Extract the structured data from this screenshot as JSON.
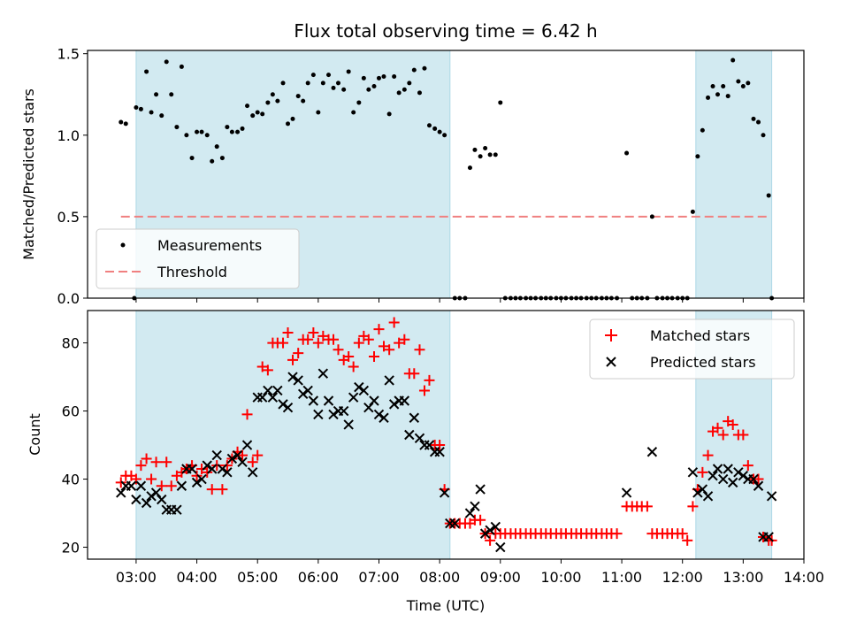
{
  "chart_data": [
    {
      "type": "scatter",
      "panel": "top",
      "title": "Flux total observing time = 6.42 h",
      "xlabel": "",
      "ylabel": "Matched/Predicted stars",
      "xlim": [
        2.2,
        14.0
      ],
      "ylim": [
        0.0,
        1.52
      ],
      "yticks": [
        0.0,
        0.5,
        1.0,
        1.5
      ],
      "ytick_labels": [
        "0.0",
        "0.5",
        "1.0",
        "1.5"
      ],
      "grid": false,
      "legend": {
        "placement": "lower-left",
        "entries": [
          "Measurements",
          "Threshold"
        ]
      },
      "shaded_ranges": [
        [
          3.0,
          8.17
        ],
        [
          12.22,
          13.47
        ]
      ],
      "threshold": {
        "name": "Threshold",
        "value": 0.5,
        "x_range": [
          2.75,
          13.45
        ],
        "color": "#f08080"
      },
      "series": [
        {
          "name": "Measurements",
          "color": "#000000",
          "x": [
            2.75,
            2.83,
            2.97,
            3.0,
            3.08,
            3.17,
            3.25,
            3.33,
            3.42,
            3.5,
            3.58,
            3.67,
            3.75,
            3.83,
            3.92,
            4.0,
            4.08,
            4.17,
            4.25,
            4.33,
            4.42,
            4.5,
            4.58,
            4.67,
            4.75,
            4.83,
            4.92,
            5.0,
            5.08,
            5.17,
            5.25,
            5.33,
            5.42,
            5.5,
            5.58,
            5.67,
            5.75,
            5.83,
            5.92,
            6.0,
            6.08,
            6.17,
            6.25,
            6.33,
            6.42,
            6.5,
            6.58,
            6.67,
            6.75,
            6.83,
            6.92,
            7.0,
            7.08,
            7.17,
            7.25,
            7.33,
            7.42,
            7.5,
            7.58,
            7.67,
            7.75,
            7.83,
            7.92,
            8.0,
            8.08,
            8.25,
            8.33,
            8.42,
            8.5,
            8.58,
            8.67,
            8.75,
            8.83,
            8.92,
            9.0,
            9.08,
            9.17,
            9.25,
            9.33,
            9.42,
            9.5,
            9.58,
            9.67,
            9.75,
            9.83,
            9.92,
            10.0,
            10.08,
            10.17,
            10.25,
            10.33,
            10.42,
            10.5,
            10.58,
            10.67,
            10.75,
            10.83,
            10.92,
            11.08,
            11.17,
            11.25,
            11.33,
            11.42,
            11.5,
            11.58,
            11.67,
            11.75,
            11.83,
            11.92,
            12.0,
            12.08,
            12.17,
            12.25,
            12.33,
            12.42,
            12.5,
            12.58,
            12.67,
            12.75,
            12.83,
            12.92,
            13.0,
            13.08,
            13.17,
            13.25,
            13.33,
            13.42,
            13.47
          ],
          "y": [
            1.08,
            1.07,
            0.0,
            1.17,
            1.16,
            1.39,
            1.14,
            1.25,
            1.12,
            1.45,
            1.25,
            1.05,
            1.42,
            1.0,
            0.86,
            1.02,
            1.02,
            1.0,
            0.84,
            0.93,
            0.86,
            1.05,
            1.02,
            1.02,
            1.04,
            1.18,
            1.12,
            1.14,
            1.13,
            1.2,
            1.25,
            1.21,
            1.32,
            1.07,
            1.1,
            1.24,
            1.21,
            1.32,
            1.37,
            1.14,
            1.32,
            1.37,
            1.29,
            1.32,
            1.28,
            1.39,
            1.14,
            1.2,
            1.35,
            1.28,
            1.3,
            1.35,
            1.36,
            1.13,
            1.36,
            1.26,
            1.28,
            1.32,
            1.4,
            1.26,
            1.41,
            1.06,
            1.04,
            1.02,
            1.0,
            0.0,
            0.0,
            0.0,
            0.8,
            0.91,
            0.87,
            0.92,
            0.88,
            0.88,
            1.2,
            0.0,
            0.0,
            0.0,
            0.0,
            0.0,
            0.0,
            0.0,
            0.0,
            0.0,
            0.0,
            0.0,
            0.0,
            0.0,
            0.0,
            0.0,
            0.0,
            0.0,
            0.0,
            0.0,
            0.0,
            0.0,
            0.0,
            0.0,
            0.89,
            0.0,
            0.0,
            0.0,
            0.0,
            0.5,
            0.0,
            0.0,
            0.0,
            0.0,
            0.0,
            0.0,
            0.0,
            0.53,
            0.87,
            1.03,
            1.23,
            1.3,
            1.25,
            1.3,
            1.24,
            1.46,
            1.33,
            1.3,
            1.32,
            1.1,
            1.08,
            1.0,
            0.63,
            0.0
          ]
        }
      ]
    },
    {
      "type": "scatter",
      "panel": "bottom",
      "title": "",
      "xlabel": "Time (UTC)",
      "ylabel": "Count",
      "xlim": [
        2.2,
        14.0
      ],
      "ylim": [
        16.5,
        89.5
      ],
      "xticks": [
        3,
        4,
        5,
        6,
        7,
        8,
        9,
        10,
        11,
        12,
        13,
        14
      ],
      "xtick_labels": [
        "03:00",
        "04:00",
        "05:00",
        "06:00",
        "07:00",
        "08:00",
        "09:00",
        "10:00",
        "11:00",
        "12:00",
        "13:00",
        "14:00"
      ],
      "yticks": [
        20,
        40,
        60,
        80
      ],
      "ytick_labels": [
        "20",
        "40",
        "60",
        "80"
      ],
      "grid": false,
      "legend": {
        "placement": "top-right",
        "entries": [
          "Matched stars",
          "Predicted stars"
        ]
      },
      "shaded_ranges": [
        [
          3.0,
          8.17
        ],
        [
          12.22,
          13.47
        ]
      ],
      "series": [
        {
          "name": "Matched stars",
          "marker": "plus",
          "color": "#ff0000",
          "x": [
            2.75,
            2.83,
            2.92,
            3.0,
            3.08,
            3.17,
            3.25,
            3.33,
            3.42,
            3.5,
            3.58,
            3.67,
            3.75,
            3.83,
            3.92,
            4.0,
            4.08,
            4.17,
            4.25,
            4.33,
            4.42,
            4.5,
            4.58,
            4.67,
            4.75,
            4.83,
            4.92,
            5.0,
            5.08,
            5.17,
            5.25,
            5.33,
            5.42,
            5.5,
            5.58,
            5.67,
            5.75,
            5.83,
            5.92,
            6.0,
            6.08,
            6.17,
            6.25,
            6.33,
            6.42,
            6.5,
            6.58,
            6.67,
            6.75,
            6.83,
            6.92,
            7.0,
            7.08,
            7.17,
            7.25,
            7.33,
            7.42,
            7.5,
            7.58,
            7.67,
            7.75,
            7.83,
            7.92,
            8.0,
            8.08,
            8.17,
            8.25,
            8.33,
            8.42,
            8.5,
            8.58,
            8.67,
            8.75,
            8.83,
            8.92,
            9.0,
            9.08,
            9.17,
            9.25,
            9.33,
            9.42,
            9.5,
            9.58,
            9.67,
            9.75,
            9.83,
            9.92,
            10.0,
            10.08,
            10.17,
            10.25,
            10.33,
            10.42,
            10.5,
            10.58,
            10.67,
            10.75,
            10.83,
            10.92,
            11.08,
            11.17,
            11.25,
            11.33,
            11.42,
            11.5,
            11.58,
            11.67,
            11.75,
            11.83,
            11.92,
            12.0,
            12.08,
            12.17,
            12.25,
            12.33,
            12.42,
            12.5,
            12.58,
            12.67,
            12.75,
            12.83,
            12.92,
            13.0,
            13.08,
            13.17,
            13.25,
            13.33,
            13.42,
            13.47
          ],
          "y": [
            39,
            41,
            41,
            40,
            44,
            46,
            40,
            45,
            38,
            45,
            38,
            41,
            42,
            43,
            44,
            41,
            43,
            42,
            37,
            44,
            37,
            44,
            46,
            48,
            47,
            59,
            45,
            47,
            73,
            72,
            80,
            80,
            80,
            83,
            75,
            77,
            81,
            81,
            83,
            80,
            82,
            81,
            81,
            78,
            75,
            76,
            73,
            80,
            82,
            81,
            76,
            84,
            79,
            78,
            86,
            80,
            81,
            71,
            71,
            78,
            66,
            69,
            50,
            50,
            37,
            27,
            27,
            27,
            27,
            27,
            28,
            28,
            24,
            22,
            24,
            24,
            24,
            24,
            24,
            24,
            24,
            24,
            24,
            24,
            24,
            24,
            24,
            24,
            24,
            24,
            24,
            24,
            24,
            24,
            24,
            24,
            24,
            24,
            24,
            32,
            32,
            32,
            32,
            32,
            24,
            24,
            24,
            24,
            24,
            24,
            24,
            22,
            32,
            37,
            42,
            47,
            54,
            55,
            53,
            57,
            56,
            53,
            53,
            44,
            40,
            40,
            23,
            22,
            22
          ]
        },
        {
          "name": "Predicted stars",
          "marker": "x",
          "color": "#000000",
          "x": [
            2.75,
            2.83,
            2.92,
            3.0,
            3.08,
            3.17,
            3.25,
            3.33,
            3.42,
            3.5,
            3.58,
            3.67,
            3.75,
            3.83,
            3.92,
            4.0,
            4.08,
            4.17,
            4.25,
            4.33,
            4.42,
            4.5,
            4.58,
            4.67,
            4.75,
            4.83,
            4.92,
            5.0,
            5.08,
            5.17,
            5.25,
            5.33,
            5.42,
            5.5,
            5.58,
            5.67,
            5.75,
            5.83,
            5.92,
            6.0,
            6.08,
            6.17,
            6.25,
            6.33,
            6.42,
            6.5,
            6.58,
            6.67,
            6.75,
            6.83,
            6.92,
            7.0,
            7.08,
            7.17,
            7.25,
            7.33,
            7.42,
            7.5,
            7.58,
            7.67,
            7.75,
            7.83,
            7.92,
            8.0,
            8.08,
            8.17,
            8.25,
            8.5,
            8.58,
            8.67,
            8.75,
            8.83,
            8.92,
            9.0,
            11.08,
            11.5,
            12.17,
            12.25,
            12.33,
            12.42,
            12.5,
            12.58,
            12.67,
            12.75,
            12.83,
            12.92,
            13.0,
            13.08,
            13.17,
            13.25,
            13.33,
            13.42,
            13.47
          ],
          "y": [
            36,
            38,
            38,
            34,
            38,
            33,
            35,
            36,
            34,
            31,
            31,
            31,
            38,
            43,
            43,
            39,
            40,
            44,
            43,
            47,
            43,
            42,
            46,
            47,
            45,
            50,
            42,
            64,
            64,
            66,
            64,
            66,
            62,
            61,
            70,
            69,
            65,
            66,
            63,
            59,
            71,
            63,
            59,
            60,
            60,
            56,
            64,
            67,
            66,
            61,
            63,
            59,
            58,
            69,
            62,
            63,
            63,
            53,
            58,
            52,
            50,
            50,
            48,
            48,
            36,
            27,
            27,
            30,
            32,
            37,
            24,
            25,
            26,
            20,
            36,
            48,
            42,
            36,
            37,
            35,
            41,
            43,
            40,
            43,
            39,
            42,
            41,
            40,
            40,
            38,
            23,
            23,
            35
          ]
        }
      ]
    }
  ]
}
